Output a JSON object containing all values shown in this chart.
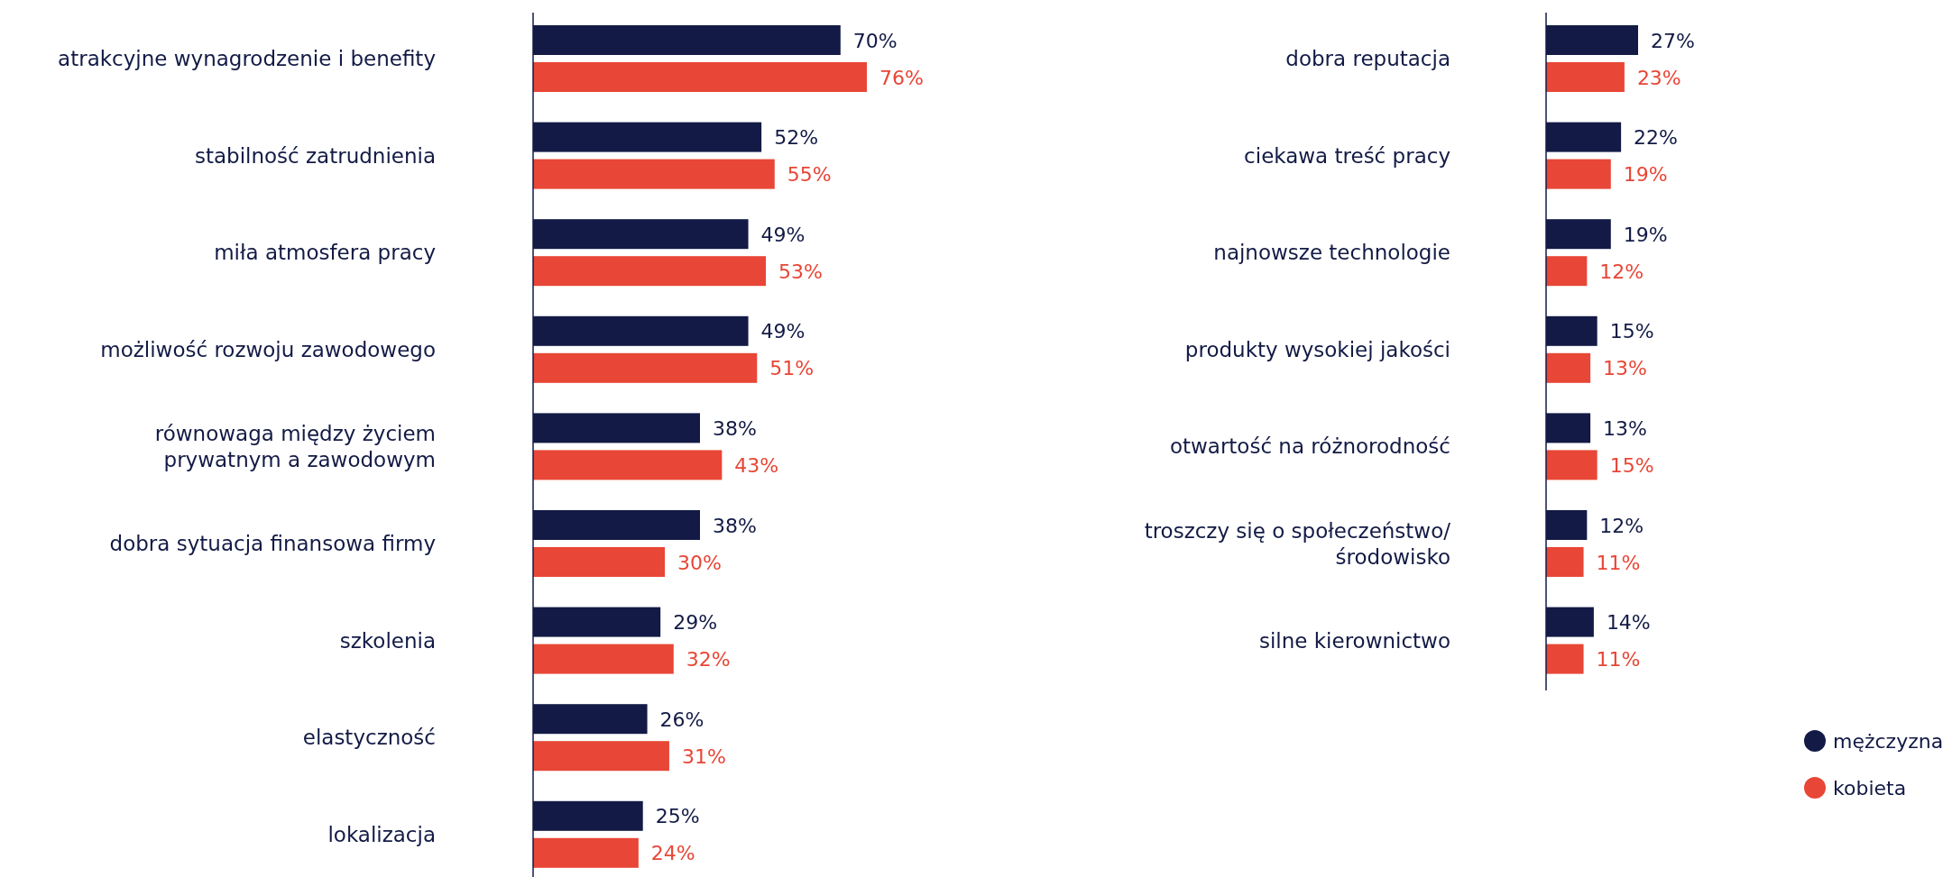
{
  "chart_data": [
    {
      "type": "bar",
      "orientation": "horizontal",
      "categories": [
        "atrakcyjne wynagrodzenie i benefity",
        "stabilność zatrudnienia",
        "miła atmosfera pracy",
        "możliwość rozwoju zawodowego",
        "równowaga między życiem\nprywatnym a zawodowym",
        "dobra sytuacja finansowa firmy",
        "szkolenia",
        "elastyczność",
        "lokalizacja"
      ],
      "series": [
        {
          "color": "#121a45",
          "values": [
            70,
            52,
            49,
            49,
            38,
            38,
            29,
            26,
            25
          ],
          "value_labels": [
            "70%",
            "52%",
            "49%",
            "49%",
            "38%",
            "38%",
            "29%",
            "26%",
            "25%"
          ]
        },
        {
          "color": "#e84636",
          "values": [
            76,
            55,
            53,
            51,
            43,
            30,
            32,
            31,
            24
          ],
          "value_labels": [
            "76%",
            "55%",
            "53%",
            "51%",
            "43%",
            "30%",
            "32%",
            "31%",
            "24%"
          ]
        }
      ],
      "tick_labels": "y",
      "legend": false
    },
    {
      "type": "bar",
      "orientation": "horizontal",
      "categories": [
        "dobra reputacja",
        "ciekawa treść pracy",
        "najnowsze technologie",
        "produkty wysokiej jakości",
        "otwartość na różnorodność",
        "troszczy się o społeczeństwo/\nśrodowisko",
        "silne kierownictwo"
      ],
      "series": [
        {
          "name": "mężczyzna",
          "color": "#121a45",
          "values": [
            27,
            22,
            19,
            15,
            13,
            12,
            14
          ],
          "value_labels": [
            "27%",
            "22%",
            "19%",
            "15%",
            "13%",
            "12%",
            "14%"
          ]
        },
        {
          "name": "kobieta",
          "color": "#e84636",
          "values": [
            23,
            19,
            12,
            13,
            15,
            11,
            11
          ],
          "value_labels": [
            "23%",
            "19%",
            "12%",
            "13%",
            "15%",
            "11%",
            "11%"
          ]
        }
      ],
      "tick_labels": "y",
      "legend": "bottom right"
    }
  ]
}
